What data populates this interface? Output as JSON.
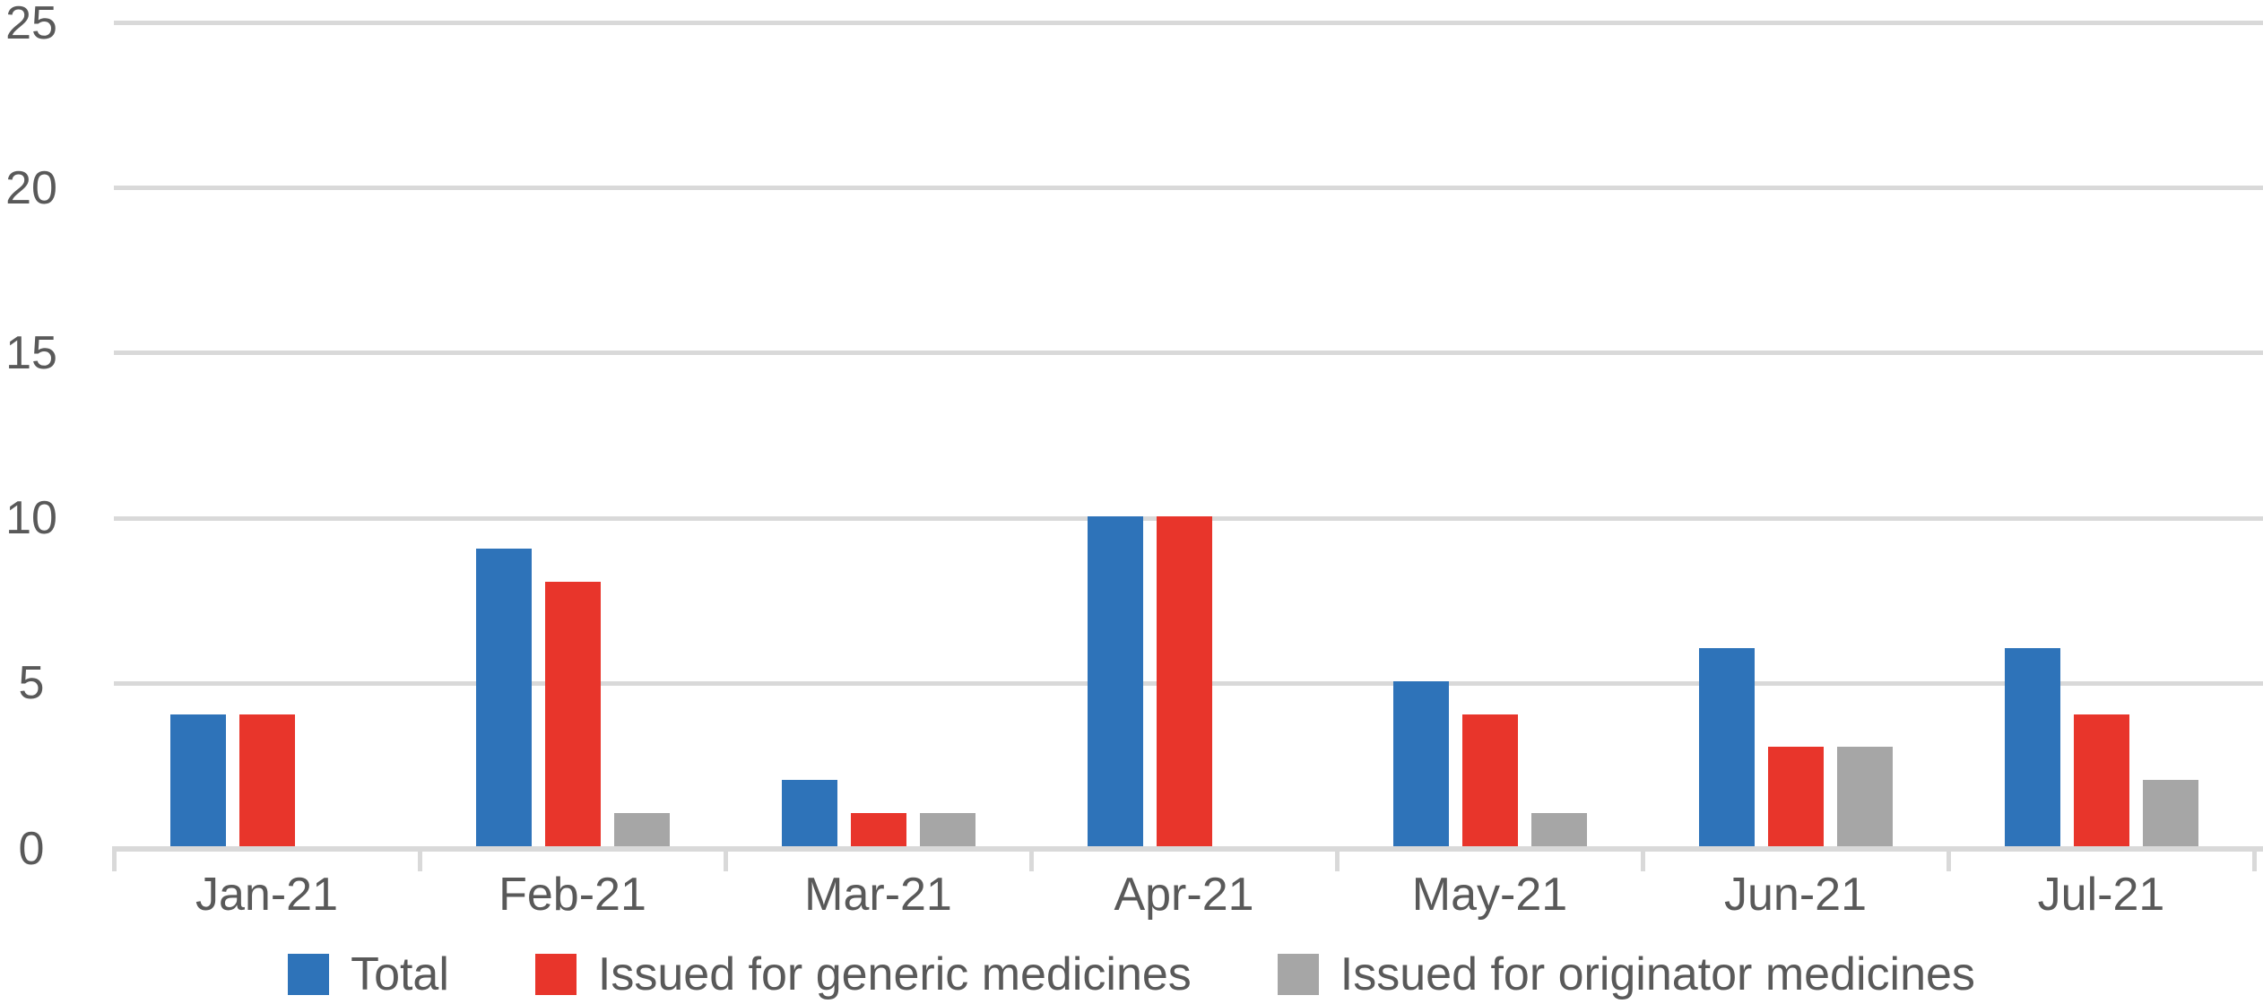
{
  "chart_data": {
    "type": "bar",
    "title": "",
    "xlabel": "",
    "ylabel": "",
    "categories": [
      "Jan-21",
      "Feb-21",
      "Mar-21",
      "Apr-21",
      "May-21",
      "Jun-21",
      "Jul-21"
    ],
    "series": [
      {
        "name": "Total",
        "color": "#2E73B9",
        "values": [
          4,
          9,
          2,
          10,
          5,
          6,
          6
        ]
      },
      {
        "name": "Issued for generic medicines",
        "color": "#E8352B",
        "values": [
          4,
          8,
          1,
          10,
          4,
          3,
          4
        ]
      },
      {
        "name": "Issued for originator medicines",
        "color": "#A6A6A6",
        "values": [
          0,
          1,
          1,
          0,
          1,
          3,
          2
        ]
      }
    ],
    "ylim": [
      0,
      25
    ],
    "yticks": [
      0,
      5,
      10,
      15,
      20,
      25
    ],
    "grid": true,
    "legend_position": "bottom",
    "colors": {
      "gridline": "#D9D9D9",
      "axis": "#D9D9D9",
      "tick": "#D9D9D9",
      "text": "#595959",
      "background": "#FFFFFF"
    }
  }
}
